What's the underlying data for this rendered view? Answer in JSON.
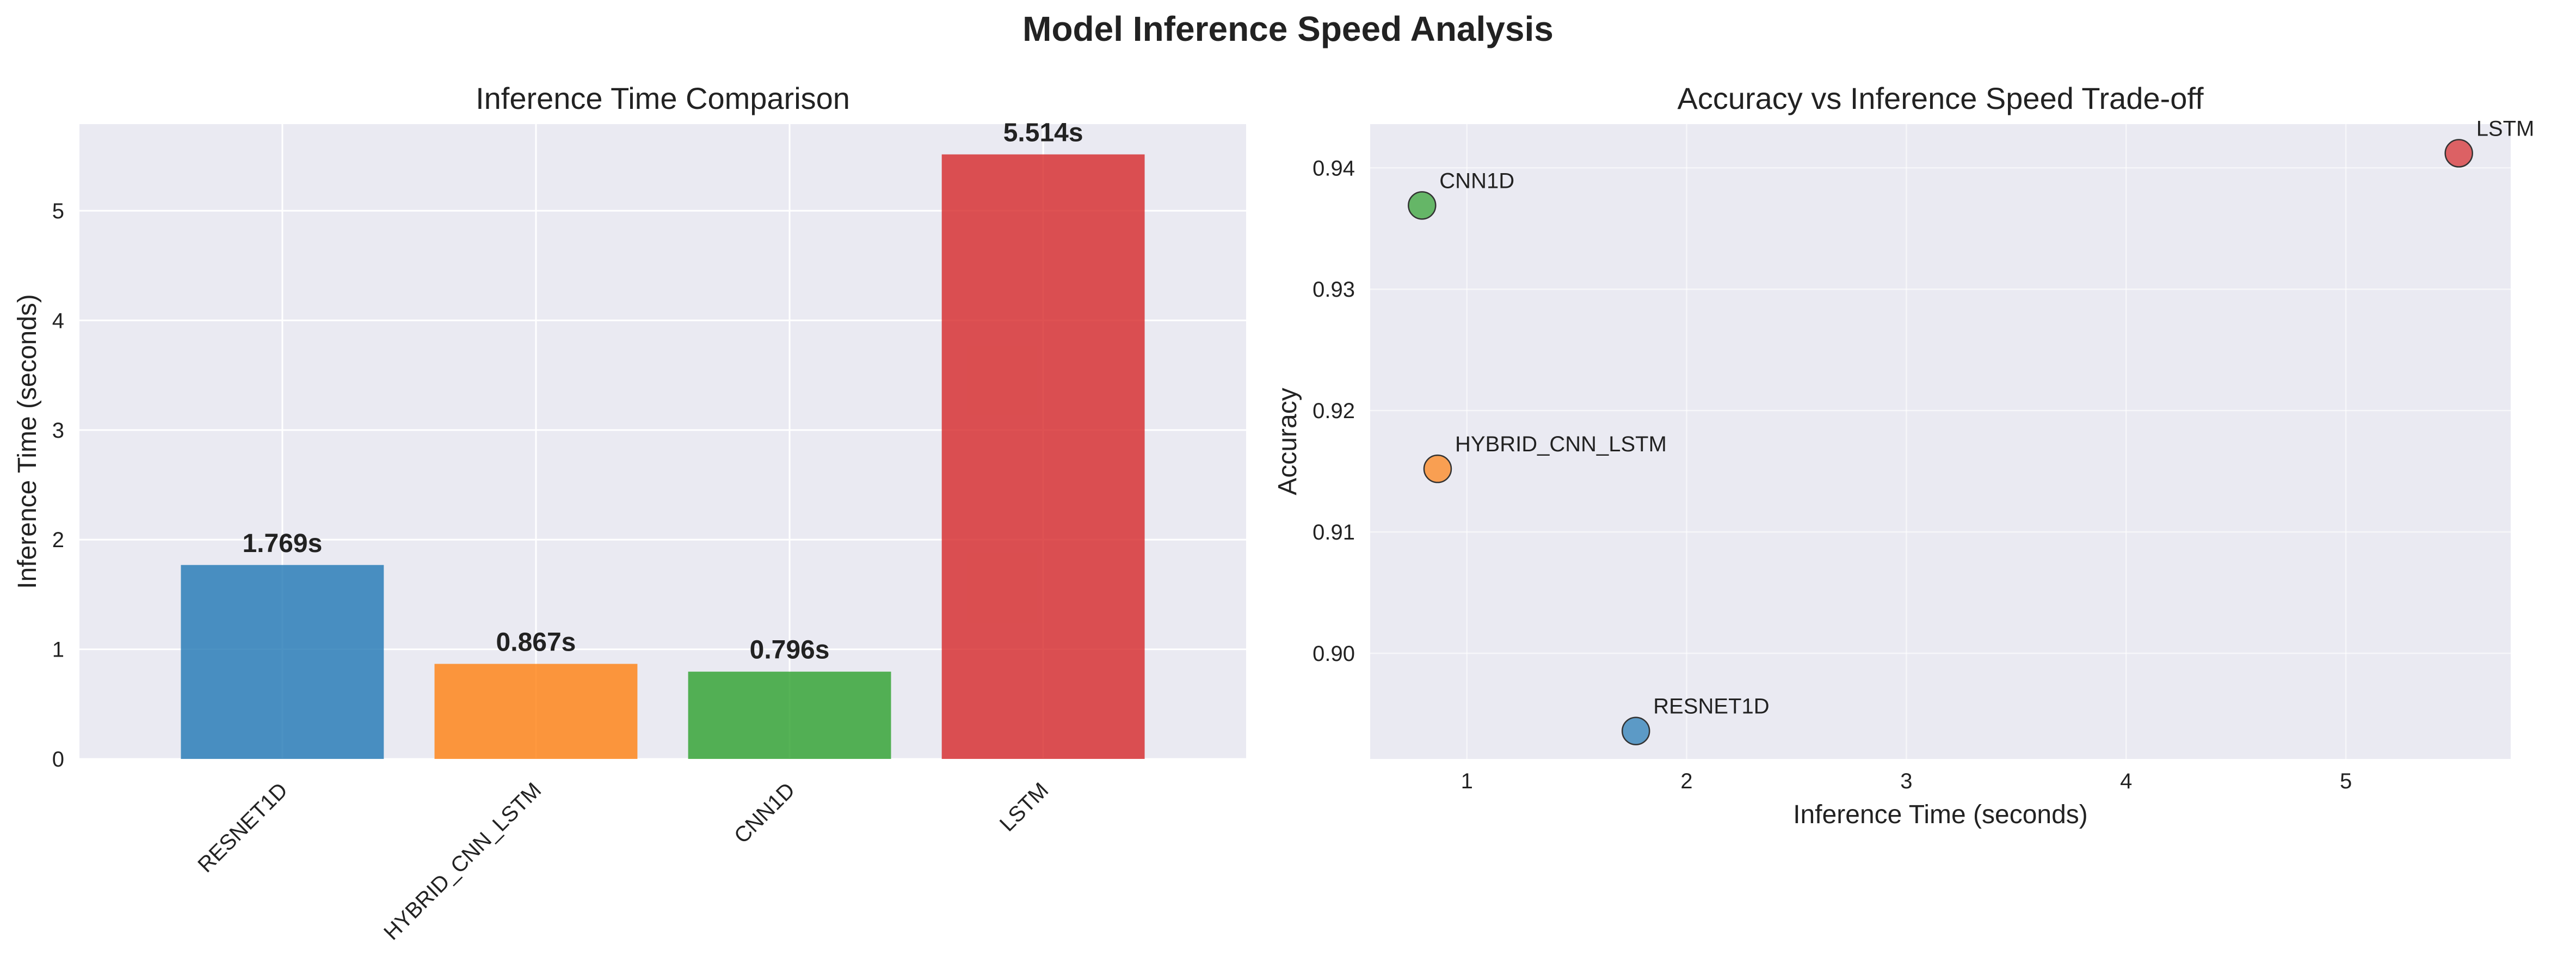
{
  "figure": {
    "title": "Model Inference Speed Analysis"
  },
  "chart_data": [
    {
      "type": "bar",
      "title": "Inference Time Comparison",
      "xlabel": "",
      "ylabel": "Inference Time (seconds)",
      "categories": [
        "RESNET1D",
        "HYBRID_CNN_LSTM",
        "CNN1D",
        "LSTM"
      ],
      "values": [
        1.769,
        0.867,
        0.796,
        5.514
      ],
      "data_labels": [
        "1.769s",
        "0.867s",
        "0.796s",
        "5.514s"
      ],
      "colors": [
        "#1f77b4",
        "#ff7f0e",
        "#2ca02c",
        "#d62728"
      ],
      "ylim": [
        0,
        5.79
      ],
      "yticks": [
        0,
        1,
        2,
        3,
        4,
        5
      ],
      "grid": true,
      "background": "#eaeaf2"
    },
    {
      "type": "scatter",
      "title": "Accuracy vs Inference Speed Trade-off",
      "xlabel": "Inference Time (seconds)",
      "ylabel": "Accuracy",
      "points": [
        {
          "label": "RESNET1D",
          "x": 1.769,
          "y": 0.8936,
          "color": "#1f77b4"
        },
        {
          "label": "HYBRID_CNN_LSTM",
          "x": 0.867,
          "y": 0.9152,
          "color": "#ff7f0e"
        },
        {
          "label": "CNN1D",
          "x": 0.796,
          "y": 0.9369,
          "color": "#2ca02c"
        },
        {
          "label": "LSTM",
          "x": 5.514,
          "y": 0.9412,
          "color": "#d62728"
        }
      ],
      "xlim": [
        0.56,
        5.75
      ],
      "ylim": [
        0.8913,
        0.9436
      ],
      "xticks": [
        1,
        2,
        3,
        4,
        5
      ],
      "yticks": [
        0.9,
        0.91,
        0.92,
        0.93,
        0.94
      ],
      "ytick_labels": [
        "0.90",
        "0.91",
        "0.92",
        "0.93",
        "0.94"
      ],
      "grid": true,
      "background": "#eaeaf2"
    }
  ]
}
